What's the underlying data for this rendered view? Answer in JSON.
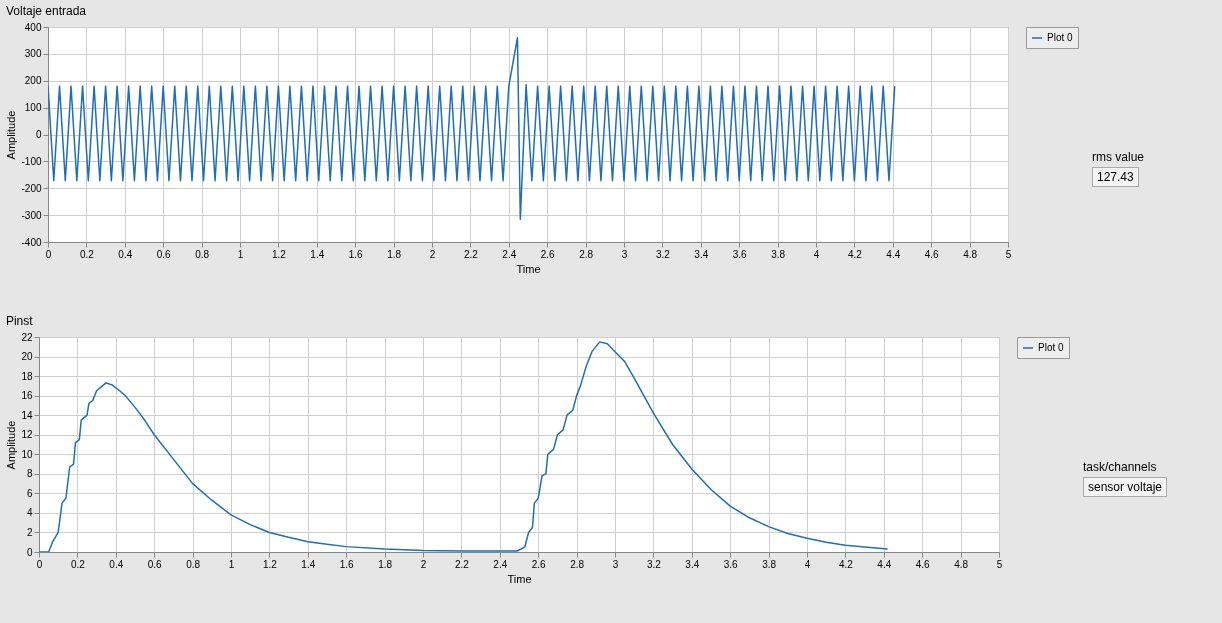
{
  "chart_data": [
    {
      "type": "line",
      "title": "Voltaje entrada",
      "xlabel": "Time",
      "ylabel": "Amplitude",
      "xlim": [
        0,
        5
      ],
      "xticks": [
        0,
        0.2,
        0.4,
        0.6,
        0.8,
        1,
        1.2,
        1.4,
        1.6,
        1.8,
        2,
        2.2,
        2.4,
        2.6,
        2.8,
        3,
        3.2,
        3.4,
        3.6,
        3.8,
        4,
        4.2,
        4.4,
        4.6,
        4.8,
        5
      ],
      "ylim": [
        -400,
        400
      ],
      "yticks": [
        -400,
        -300,
        -200,
        -100,
        0,
        100,
        200,
        300,
        400
      ],
      "grid": true,
      "legend": "top right",
      "marker": "none",
      "annotations": [
        "rms value",
        "127.43"
      ],
      "series": [
        {
          "name": "Plot 0",
          "color": "#1f6fb4",
          "x": [
            0,
            0.03,
            0.06,
            0.09,
            0.12,
            0.15,
            0.18,
            0.21,
            0.24,
            0.27,
            0.3,
            0.33,
            0.36,
            0.39,
            0.42,
            0.45,
            0.48,
            0.51,
            0.54,
            0.57,
            0.6,
            0.63,
            0.66,
            0.69,
            0.72,
            0.75,
            0.78,
            0.81,
            0.84,
            0.87,
            0.9,
            0.93,
            0.96,
            0.99,
            1.02,
            1.05,
            1.08,
            1.11,
            1.14,
            1.17,
            1.2,
            1.23,
            1.26,
            1.29,
            1.32,
            1.35,
            1.38,
            1.41,
            1.44,
            1.47,
            1.5,
            1.53,
            1.56,
            1.59,
            1.62,
            1.65,
            1.68,
            1.71,
            1.74,
            1.77,
            1.8,
            1.83,
            1.86,
            1.89,
            1.92,
            1.95,
            1.98,
            2.01,
            2.04,
            2.07,
            2.1,
            2.13,
            2.16,
            2.19,
            2.22,
            2.25,
            2.28,
            2.31,
            2.34,
            2.37,
            2.4,
            2.445,
            2.46,
            2.49,
            2.52,
            2.55,
            2.58,
            2.61,
            2.64,
            2.67,
            2.7,
            2.73,
            2.76,
            2.79,
            2.82,
            2.85,
            2.88,
            2.91,
            2.94,
            2.97,
            3,
            3.03,
            3.06,
            3.09,
            3.12,
            3.15,
            3.18,
            3.21,
            3.24,
            3.27,
            3.3,
            3.33,
            3.36,
            3.39,
            3.42,
            3.45,
            3.48,
            3.51,
            3.54,
            3.57,
            3.6,
            3.63,
            3.66,
            3.69,
            3.72,
            3.75,
            3.78,
            3.81,
            3.84,
            3.87,
            3.9,
            3.93,
            3.96,
            3.99,
            4.02,
            4.05,
            4.08,
            4.11,
            4.14,
            4.17,
            4.2,
            4.23,
            4.26,
            4.29,
            4.32,
            4.35,
            4.38,
            4.41
          ],
          "values": [
            180,
            -172,
            180,
            -172,
            180,
            -172,
            180,
            -172,
            180,
            -172,
            180,
            -172,
            180,
            -172,
            180,
            -172,
            180,
            -172,
            180,
            -172,
            180,
            -172,
            180,
            -172,
            180,
            -172,
            180,
            -172,
            180,
            -172,
            180,
            -172,
            180,
            -172,
            180,
            -172,
            180,
            -172,
            180,
            -172,
            180,
            -172,
            180,
            -172,
            180,
            -172,
            180,
            -172,
            180,
            -172,
            180,
            -172,
            180,
            -172,
            180,
            -172,
            180,
            -172,
            180,
            -172,
            180,
            -172,
            180,
            -172,
            180,
            -172,
            180,
            -172,
            180,
            -172,
            180,
            -172,
            180,
            -172,
            180,
            -172,
            180,
            -172,
            180,
            -172,
            180,
            360,
            -315,
            185,
            -172,
            180,
            -172,
            180,
            -172,
            180,
            -172,
            180,
            -172,
            180,
            -172,
            180,
            -172,
            180,
            -172,
            180,
            -172,
            180,
            -172,
            180,
            -172,
            180,
            -172,
            180,
            -172,
            180,
            -172,
            180,
            -172,
            180,
            -172,
            180,
            -172,
            180,
            -172,
            180,
            -172,
            180,
            -172,
            180,
            -172,
            180,
            -172,
            180,
            -172,
            180,
            -172,
            180,
            -172,
            180,
            -172,
            180,
            -172,
            180,
            -172,
            180,
            -172,
            180,
            -172,
            180,
            -172,
            180,
            -172,
            180
          ]
        }
      ]
    },
    {
      "type": "line",
      "title": "Pinst",
      "xlabel": "Time",
      "ylabel": "Amplitude",
      "xlim": [
        0,
        5
      ],
      "xticks": [
        0,
        0.2,
        0.4,
        0.6,
        0.8,
        1,
        1.2,
        1.4,
        1.6,
        1.8,
        2,
        2.2,
        2.4,
        2.6,
        2.8,
        3,
        3.2,
        3.4,
        3.6,
        3.8,
        4,
        4.2,
        4.4,
        4.6,
        4.8,
        5
      ],
      "ylim": [
        0,
        22
      ],
      "yticks": [
        0,
        2,
        4,
        6,
        8,
        10,
        12,
        14,
        16,
        18,
        20,
        22
      ],
      "grid": true,
      "legend": "top right",
      "marker": "none",
      "annotations": [
        "task/channels",
        "sensor voltaje"
      ],
      "series": [
        {
          "name": "Plot 0",
          "color": "#1f6fb4",
          "x": [
            0,
            0.05,
            0.07,
            0.1,
            0.12,
            0.14,
            0.16,
            0.18,
            0.19,
            0.21,
            0.22,
            0.25,
            0.26,
            0.28,
            0.3,
            0.33,
            0.35,
            0.38,
            0.42,
            0.45,
            0.5,
            0.55,
            0.6,
            0.7,
            0.8,
            0.9,
            1,
            1.1,
            1.2,
            1.3,
            1.4,
            1.5,
            1.6,
            1.8,
            2,
            2.2,
            2.36,
            2.49,
            2.53,
            2.55,
            2.57,
            2.58,
            2.6,
            2.62,
            2.64,
            2.65,
            2.68,
            2.7,
            2.73,
            2.75,
            2.78,
            2.8,
            2.82,
            2.85,
            2.88,
            2.92,
            2.96,
            3,
            3.05,
            3.1,
            3.2,
            3.3,
            3.4,
            3.5,
            3.6,
            3.7,
            3.8,
            3.9,
            4,
            4.1,
            4.2,
            4.3,
            4.42
          ],
          "values": [
            0,
            0,
            1,
            2,
            5,
            5.5,
            8.7,
            9,
            11.2,
            11.5,
            13.5,
            14,
            15.2,
            15.5,
            16.5,
            17,
            17.3,
            17.1,
            16.5,
            16,
            14.8,
            13.5,
            12,
            9.5,
            7,
            5.3,
            3.8,
            2.8,
            2,
            1.5,
            1.05,
            0.8,
            0.55,
            0.3,
            0.15,
            0.1,
            0.1,
            0.1,
            0.5,
            2,
            2.5,
            5,
            5.5,
            7.8,
            8,
            10,
            10.5,
            12,
            12.5,
            14,
            14.5,
            16,
            17,
            19,
            20.5,
            21.5,
            21.3,
            20.5,
            19.5,
            17.8,
            14.2,
            11,
            8.5,
            6.4,
            4.7,
            3.5,
            2.6,
            1.9,
            1.4,
            1,
            0.7,
            0.5,
            0.3
          ]
        }
      ]
    }
  ]
}
